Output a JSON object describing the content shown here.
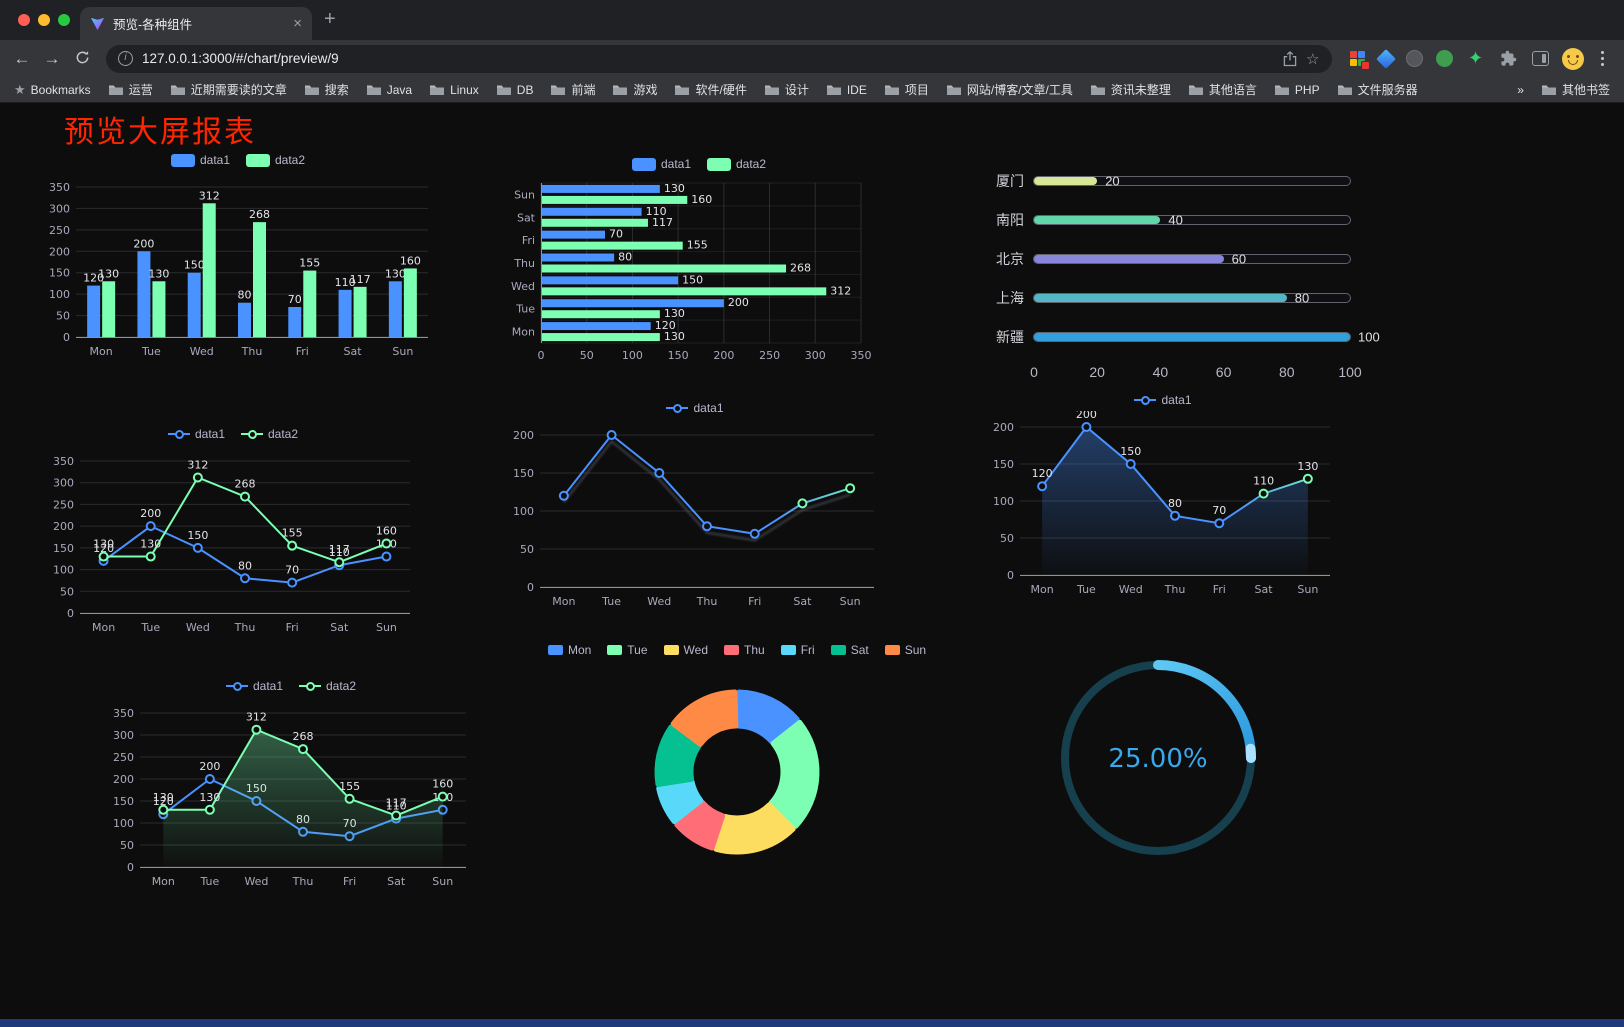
{
  "browser": {
    "traffic_lights": [
      "#ff5f57",
      "#febc2e",
      "#28c840"
    ],
    "tab": {
      "title": "预览-各种组件"
    },
    "toolbar": {
      "url": "127.0.0.1:3000/#/chart/preview/9"
    },
    "icons": {
      "close": "×",
      "new_tab": "+",
      "back": "←",
      "forward": "→",
      "bookmark_star": "☆",
      "site_info": "i",
      "ext_star": "✦"
    },
    "bookmarks_bar": {
      "items": [
        {
          "label": "Bookmarks",
          "icon": "star"
        },
        {
          "label": "运营",
          "icon": "folder"
        },
        {
          "label": "近期需要读的文章",
          "icon": "folder"
        },
        {
          "label": "搜索",
          "icon": "folder"
        },
        {
          "label": "Java",
          "icon": "folder"
        },
        {
          "label": "Linux",
          "icon": "folder"
        },
        {
          "label": "DB",
          "icon": "folder"
        },
        {
          "label": "前端",
          "icon": "folder"
        },
        {
          "label": "游戏",
          "icon": "folder"
        },
        {
          "label": "软件/硬件",
          "icon": "folder"
        },
        {
          "label": "设计",
          "icon": "folder"
        },
        {
          "label": "IDE",
          "icon": "folder"
        },
        {
          "label": "项目",
          "icon": "folder"
        },
        {
          "label": "网站/博客/文章/工具",
          "icon": "folder"
        },
        {
          "label": "资讯未整理",
          "icon": "folder"
        },
        {
          "label": "其他语言",
          "icon": "folder"
        },
        {
          "label": "PHP",
          "icon": "folder"
        },
        {
          "label": "文件服务器",
          "icon": "folder"
        },
        {
          "label": "»",
          "icon": "none"
        },
        {
          "label": "其他书签",
          "icon": "folder"
        }
      ]
    }
  },
  "page": {
    "title": "预览大屏报表",
    "title_color": "#ff2500"
  },
  "palette": {
    "blue": "#4992ff",
    "green": "#7cffb2",
    "yellow": "#fddd60",
    "red": "#ff6e76",
    "lightblue": "#58d9f9",
    "teal": "#05c091",
    "orange": "#ff8a45"
  },
  "chart_data": [
    {
      "id": "bar-grouped",
      "type": "bar",
      "categories": [
        "Mon",
        "Tue",
        "Wed",
        "Thu",
        "Fri",
        "Sat",
        "Sun"
      ],
      "series": [
        {
          "name": "data1",
          "color": "#4992ff",
          "values": [
            120,
            200,
            150,
            80,
            70,
            110,
            130
          ],
          "labels": true
        },
        {
          "name": "data2",
          "color": "#7cffb2",
          "values": [
            130,
            130,
            312,
            268,
            155,
            117,
            160
          ],
          "labels": true
        }
      ],
      "ylim": [
        0,
        350
      ],
      "ytick": 50,
      "grid": true,
      "legend_position": "top"
    },
    {
      "id": "hbar-grouped",
      "type": "bar",
      "orientation": "horizontal",
      "categories": [
        "Mon",
        "Tue",
        "Wed",
        "Thu",
        "Fri",
        "Sat",
        "Sun"
      ],
      "series": [
        {
          "name": "data1",
          "color": "#4992ff",
          "values": [
            120,
            200,
            150,
            80,
            70,
            110,
            130
          ],
          "labels": true
        },
        {
          "name": "data2",
          "color": "#7cffb2",
          "values": [
            130,
            130,
            312,
            268,
            155,
            117,
            160
          ],
          "labels": true
        }
      ],
      "xlim": [
        0,
        350
      ],
      "xtick": 50,
      "grid": true,
      "legend_position": "top"
    },
    {
      "id": "progress-bars",
      "type": "bar",
      "orientation": "progress",
      "items": [
        {
          "label": "厦门",
          "value": 20,
          "color": "#d6e796"
        },
        {
          "label": "南阳",
          "value": 40,
          "color": "#5fd7a8"
        },
        {
          "label": "北京",
          "value": 60,
          "color": "#8886da"
        },
        {
          "label": "上海",
          "value": 80,
          "color": "#54b6c4"
        },
        {
          "label": "新疆",
          "value": 100,
          "color": "#31a1dd"
        }
      ],
      "max": 100,
      "axis_ticks": [
        0,
        20,
        40,
        60,
        80,
        100
      ]
    },
    {
      "id": "line-two",
      "type": "line",
      "categories": [
        "Mon",
        "Tue",
        "Wed",
        "Thu",
        "Fri",
        "Sat",
        "Sun"
      ],
      "series": [
        {
          "name": "data1",
          "color": "#4992ff",
          "values": [
            120,
            200,
            150,
            80,
            70,
            110,
            130
          ],
          "labels": true
        },
        {
          "name": "data2",
          "color": "#7cffb2",
          "values": [
            130,
            130,
            312,
            268,
            155,
            117,
            160
          ],
          "labels": true
        }
      ],
      "ylim": [
        0,
        350
      ],
      "ytick": 50,
      "grid": true,
      "legend_position": "top"
    },
    {
      "id": "line-gradient",
      "type": "line",
      "categories": [
        "Mon",
        "Tue",
        "Wed",
        "Thu",
        "Fri",
        "Sat",
        "Sun"
      ],
      "series": [
        {
          "name": "data1",
          "gradient": [
            "#4992ff",
            "#7cffb2"
          ],
          "values": [
            120,
            200,
            150,
            80,
            70,
            110,
            130
          ],
          "labels": false
        }
      ],
      "ylim": [
        0,
        200
      ],
      "ytick": 50,
      "shadow": true,
      "grid": true,
      "legend_position": "top"
    },
    {
      "id": "area-single",
      "type": "area",
      "categories": [
        "Mon",
        "Tue",
        "Wed",
        "Thu",
        "Fri",
        "Sat",
        "Sun"
      ],
      "series": [
        {
          "name": "data1",
          "color": "#4992ff",
          "gradient": [
            "#4992ff",
            "#7cffb2"
          ],
          "values": [
            120,
            200,
            150,
            80,
            70,
            110,
            130
          ],
          "labels": true,
          "area": true
        }
      ],
      "ylim": [
        0,
        200
      ],
      "ytick": 50,
      "grid": true,
      "legend_position": "top"
    },
    {
      "id": "line-area-two",
      "type": "line",
      "categories": [
        "Mon",
        "Tue",
        "Wed",
        "Thu",
        "Fri",
        "Sat",
        "Sun"
      ],
      "series": [
        {
          "name": "data1",
          "color": "#4992ff",
          "values": [
            120,
            200,
            150,
            80,
            70,
            110,
            130
          ],
          "labels": true
        },
        {
          "name": "data2",
          "color": "#7cffb2",
          "values": [
            130,
            130,
            312,
            268,
            155,
            117,
            160
          ],
          "labels": true,
          "area": true
        }
      ],
      "ylim": [
        0,
        350
      ],
      "ytick": 50,
      "grid": true,
      "legend_position": "top"
    },
    {
      "id": "pie-donut",
      "type": "pie",
      "categories": [
        "Mon",
        "Tue",
        "Wed",
        "Thu",
        "Fri",
        "Sat",
        "Sun"
      ],
      "values": [
        120,
        200,
        150,
        80,
        70,
        110,
        130
      ],
      "colors": [
        "#4992ff",
        "#7cffb2",
        "#fddd60",
        "#ff6e76",
        "#58d9f9",
        "#05c091",
        "#ff8a45"
      ],
      "inner_radius": 46,
      "outer_radius": 80,
      "legend_position": "top"
    },
    {
      "id": "gauge-ring",
      "type": "gauge",
      "value": 25,
      "max": 100,
      "label": "25.00%",
      "color_start": "#5ec8f5",
      "color_end": "#2a97dd",
      "cap_color": "#a8e2ff",
      "track_color": "#17404f",
      "text_color": "#38a9ec",
      "radius": 93
    }
  ]
}
